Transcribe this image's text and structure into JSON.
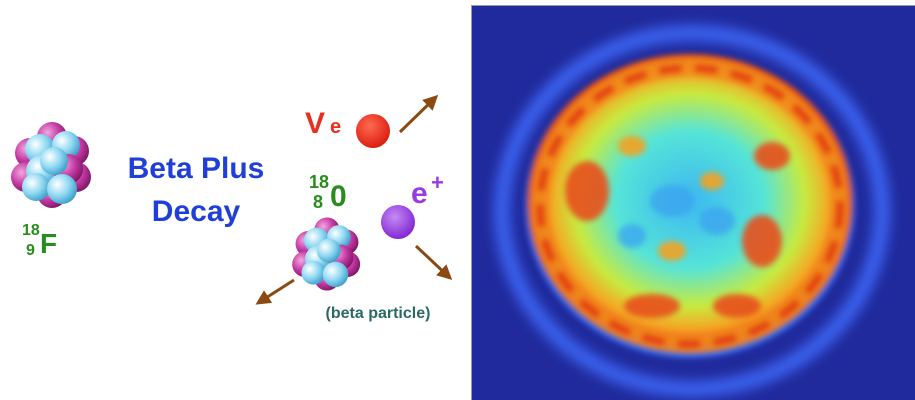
{
  "diagram": {
    "title_line1": "Beta Plus",
    "title_line2": "Decay",
    "parent_isotope": {
      "mass_number": "18",
      "atomic_number": "9",
      "symbol": "F"
    },
    "daughter_isotope": {
      "mass_number": "18",
      "atomic_number": "8",
      "symbol": "0"
    },
    "neutrino": {
      "symbol": "V",
      "subscript": "e"
    },
    "positron": {
      "symbol": "e",
      "superscript": "+"
    },
    "beta_label": "(beta particle)"
  },
  "colors": {
    "title_blue": "#1f3fd8",
    "isotope_green": "#2a8c1e",
    "neutrino_red": "#e83020",
    "positron_purple": "#9a3be0",
    "arrow_brown": "#8a4a12",
    "beta_label_teal": "#2b6a66",
    "proton_magenta": "#b02a8f",
    "neutron_cyan": "#7fd0ec",
    "pet_background": "#202a9c"
  },
  "pet_scan": {
    "description_icon": "pet-brain-scan-image"
  }
}
